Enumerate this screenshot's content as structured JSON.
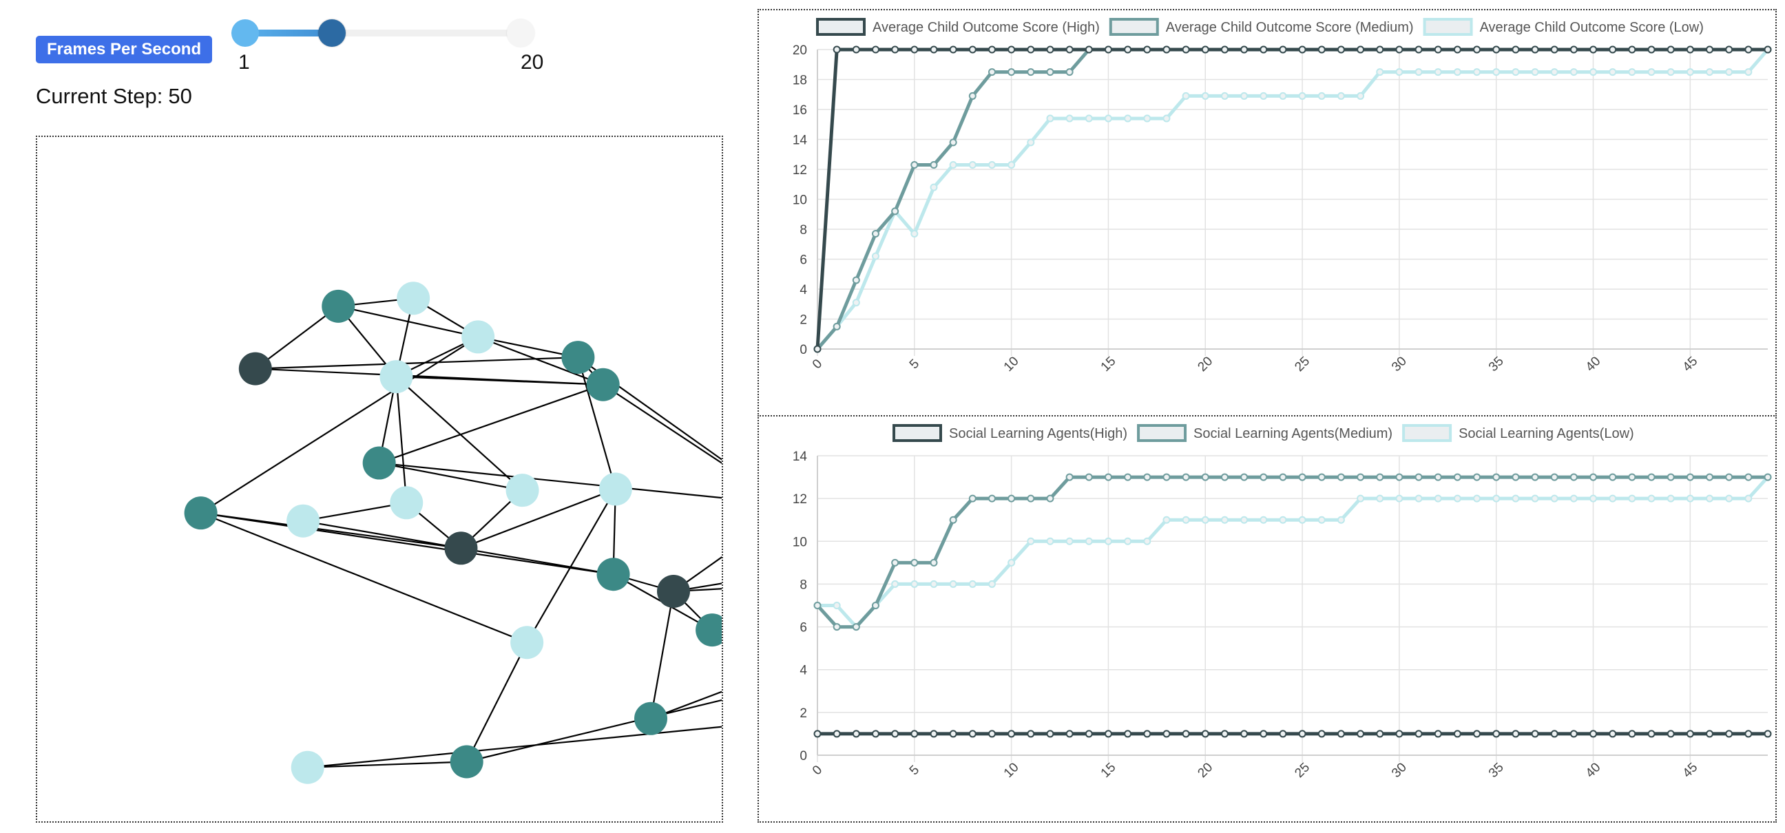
{
  "controls": {
    "fps_label": "Frames Per Second",
    "slider": {
      "min": 1,
      "max": 20,
      "value": 7,
      "min_label": "1",
      "max_label": "20"
    },
    "step_prefix": "Current Step:",
    "step_value": "50"
  },
  "colors": {
    "high": "#35494d",
    "medium": "#3c8986",
    "medium_line": "#6e9c9d",
    "low": "#bde8ec",
    "accent": "#3d6fe8"
  },
  "network": {
    "nodes": [
      {
        "id": 0,
        "group": "medium"
      },
      {
        "id": 1,
        "group": "low"
      },
      {
        "id": 2,
        "group": "high"
      },
      {
        "id": 3,
        "group": "low"
      },
      {
        "id": 4,
        "group": "medium"
      },
      {
        "id": 5,
        "group": "medium"
      },
      {
        "id": 6,
        "group": "low"
      },
      {
        "id": 7,
        "group": "medium"
      },
      {
        "id": 8,
        "group": "low"
      },
      {
        "id": 9,
        "group": "low"
      },
      {
        "id": 10,
        "group": "low"
      },
      {
        "id": 11,
        "group": "high"
      },
      {
        "id": 12,
        "group": "low"
      },
      {
        "id": 13,
        "group": "medium"
      },
      {
        "id": 14,
        "group": "medium"
      },
      {
        "id": 15,
        "group": "high"
      },
      {
        "id": 16,
        "group": "medium"
      },
      {
        "id": 17,
        "group": "high"
      },
      {
        "id": 18,
        "group": "low"
      },
      {
        "id": 19,
        "group": "medium"
      },
      {
        "id": 20,
        "group": "low"
      },
      {
        "id": 21,
        "group": "medium"
      },
      {
        "id": 22,
        "group": "low"
      },
      {
        "id": 23,
        "group": "medium"
      },
      {
        "id": 24,
        "group": "low"
      },
      {
        "id": 25,
        "group": "medium"
      },
      {
        "id": 26,
        "group": "low"
      },
      {
        "id": 27,
        "group": "medium"
      },
      {
        "id": 28,
        "group": "low"
      }
    ],
    "edges": [
      [
        0,
        1
      ],
      [
        0,
        3
      ],
      [
        1,
        3
      ],
      [
        2,
        0
      ],
      [
        2,
        4
      ],
      [
        2,
        5
      ],
      [
        0,
        6
      ],
      [
        1,
        6
      ],
      [
        3,
        4
      ],
      [
        3,
        6
      ],
      [
        3,
        5
      ],
      [
        4,
        5
      ],
      [
        6,
        4
      ],
      [
        6,
        7
      ],
      [
        6,
        8
      ],
      [
        7,
        8
      ],
      [
        6,
        10
      ],
      [
        5,
        12
      ],
      [
        3,
        13
      ],
      [
        4,
        7
      ],
      [
        7,
        16
      ],
      [
        9,
        10
      ],
      [
        9,
        11
      ],
      [
        8,
        11
      ],
      [
        10,
        11
      ],
      [
        11,
        14
      ],
      [
        11,
        12
      ],
      [
        11,
        13
      ],
      [
        12,
        14
      ],
      [
        13,
        14
      ],
      [
        5,
        15
      ],
      [
        4,
        15
      ],
      [
        15,
        16
      ],
      [
        15,
        17
      ],
      [
        16,
        18
      ],
      [
        16,
        19
      ],
      [
        17,
        18
      ],
      [
        17,
        21
      ],
      [
        14,
        21
      ],
      [
        15,
        19
      ],
      [
        17,
        22
      ],
      [
        18,
        19
      ],
      [
        19,
        21
      ],
      [
        12,
        20
      ],
      [
        13,
        20
      ],
      [
        20,
        23
      ],
      [
        23,
        25
      ],
      [
        24,
        25
      ],
      [
        21,
        25
      ],
      [
        14,
        17
      ],
      [
        19,
        26
      ],
      [
        22,
        26
      ],
      [
        21,
        26
      ],
      [
        17,
        27
      ],
      [
        24,
        27
      ],
      [
        22,
        24
      ],
      [
        26,
        28
      ],
      [
        28,
        23
      ]
    ]
  },
  "chart_data": [
    {
      "type": "line",
      "x": [
        0,
        1,
        2,
        3,
        4,
        5,
        6,
        7,
        8,
        9,
        10,
        11,
        12,
        13,
        14,
        15,
        16,
        17,
        18,
        19,
        20,
        21,
        22,
        23,
        24,
        25,
        26,
        27,
        28,
        29,
        30,
        31,
        32,
        33,
        34,
        35,
        36,
        37,
        38,
        39,
        40,
        41,
        42,
        43,
        44,
        45,
        46,
        47,
        48,
        49
      ],
      "x_tick_labels": [
        "0",
        "5",
        "10",
        "15",
        "20",
        "25",
        "30",
        "35",
        "40",
        "45"
      ],
      "y_tick_labels": [
        "0",
        "2",
        "4",
        "6",
        "8",
        "10",
        "12",
        "14",
        "16",
        "18",
        "20"
      ],
      "ylim": [
        0,
        20
      ],
      "legend_position": "top",
      "grid": true,
      "series": [
        {
          "name": "Average Child Outcome Score (High)",
          "color": "#35494d",
          "values": [
            0,
            20,
            20,
            20,
            20,
            20,
            20,
            20,
            20,
            20,
            20,
            20,
            20,
            20,
            20,
            20,
            20,
            20,
            20,
            20,
            20,
            20,
            20,
            20,
            20,
            20,
            20,
            20,
            20,
            20,
            20,
            20,
            20,
            20,
            20,
            20,
            20,
            20,
            20,
            20,
            20,
            20,
            20,
            20,
            20,
            20,
            20,
            20,
            20,
            20
          ]
        },
        {
          "name": "Average Child Outcome Score (Medium)",
          "color": "#6e9c9d",
          "values": [
            0,
            1.5,
            4.6,
            7.7,
            9.2,
            12.3,
            12.3,
            13.8,
            16.9,
            18.5,
            18.5,
            18.5,
            18.5,
            18.5,
            20,
            20,
            20,
            20,
            20,
            20,
            20,
            20,
            20,
            20,
            20,
            20,
            20,
            20,
            20,
            20,
            20,
            20,
            20,
            20,
            20,
            20,
            20,
            20,
            20,
            20,
            20,
            20,
            20,
            20,
            20,
            20,
            20,
            20,
            20,
            20
          ]
        },
        {
          "name": "Average Child Outcome Score (Low)",
          "color": "#bde8ec",
          "values": [
            0,
            1.5,
            3.1,
            6.2,
            9.2,
            7.7,
            10.8,
            12.3,
            12.3,
            12.3,
            12.3,
            13.8,
            15.4,
            15.4,
            15.4,
            15.4,
            15.4,
            15.4,
            15.4,
            16.9,
            16.9,
            16.9,
            16.9,
            16.9,
            16.9,
            16.9,
            16.9,
            16.9,
            16.9,
            18.5,
            18.5,
            18.5,
            18.5,
            18.5,
            18.5,
            18.5,
            18.5,
            18.5,
            18.5,
            18.5,
            18.5,
            18.5,
            18.5,
            18.5,
            18.5,
            18.5,
            18.5,
            18.5,
            18.5,
            20
          ]
        }
      ]
    },
    {
      "type": "line",
      "x": [
        0,
        1,
        2,
        3,
        4,
        5,
        6,
        7,
        8,
        9,
        10,
        11,
        12,
        13,
        14,
        15,
        16,
        17,
        18,
        19,
        20,
        21,
        22,
        23,
        24,
        25,
        26,
        27,
        28,
        29,
        30,
        31,
        32,
        33,
        34,
        35,
        36,
        37,
        38,
        39,
        40,
        41,
        42,
        43,
        44,
        45,
        46,
        47,
        48,
        49
      ],
      "x_tick_labels": [
        "0",
        "5",
        "10",
        "15",
        "20",
        "25",
        "30",
        "35",
        "40",
        "45"
      ],
      "y_tick_labels": [
        "0",
        "2",
        "4",
        "6",
        "8",
        "10",
        "12",
        "14"
      ],
      "ylim": [
        0,
        14
      ],
      "legend_position": "top",
      "grid": true,
      "series": [
        {
          "name": "Social Learning Agents(High)",
          "color": "#35494d",
          "values": [
            1,
            1,
            1,
            1,
            1,
            1,
            1,
            1,
            1,
            1,
            1,
            1,
            1,
            1,
            1,
            1,
            1,
            1,
            1,
            1,
            1,
            1,
            1,
            1,
            1,
            1,
            1,
            1,
            1,
            1,
            1,
            1,
            1,
            1,
            1,
            1,
            1,
            1,
            1,
            1,
            1,
            1,
            1,
            1,
            1,
            1,
            1,
            1,
            1,
            1
          ]
        },
        {
          "name": "Social Learning Agents(Medium)",
          "color": "#6e9c9d",
          "values": [
            7,
            6,
            6,
            7,
            9,
            9,
            9,
            11,
            12,
            12,
            12,
            12,
            12,
            13,
            13,
            13,
            13,
            13,
            13,
            13,
            13,
            13,
            13,
            13,
            13,
            13,
            13,
            13,
            13,
            13,
            13,
            13,
            13,
            13,
            13,
            13,
            13,
            13,
            13,
            13,
            13,
            13,
            13,
            13,
            13,
            13,
            13,
            13,
            13,
            13
          ]
        },
        {
          "name": "Social Learning Agents(Low)",
          "color": "#bde8ec",
          "values": [
            7,
            7,
            6,
            7,
            8,
            8,
            8,
            8,
            8,
            8,
            9,
            10,
            10,
            10,
            10,
            10,
            10,
            10,
            11,
            11,
            11,
            11,
            11,
            11,
            11,
            11,
            11,
            11,
            12,
            12,
            12,
            12,
            12,
            12,
            12,
            12,
            12,
            12,
            12,
            12,
            12,
            12,
            12,
            12,
            12,
            12,
            12,
            12,
            12,
            13
          ]
        }
      ]
    }
  ]
}
